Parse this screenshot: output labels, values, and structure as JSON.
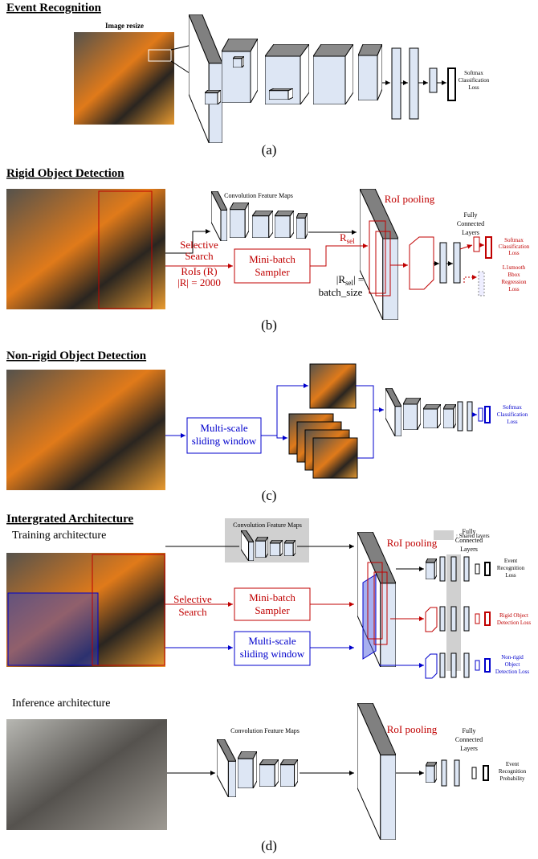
{
  "panel_a": {
    "title": "Event Recognition",
    "image_label": "Image resize",
    "loss": [
      "Softmax",
      "Classification",
      "Loss"
    ],
    "caption": "(a)"
  },
  "panel_b": {
    "title": "Rigid Object Detection",
    "feature_maps": "Convolution Feature Maps",
    "roi_pooling": "RoI pooling",
    "fc_layers": [
      "Fully",
      "Connected",
      "Layers"
    ],
    "cls_loss": [
      "Softmax",
      "Classification",
      "Loss"
    ],
    "reg_loss": [
      "L1smooth",
      "Bbox",
      "Regression",
      "Loss"
    ],
    "proposals": [
      "Selective",
      "Search",
      "RoIs (R)",
      "|R| = 2000"
    ],
    "sampler": [
      "Mini-batch",
      "Sampler"
    ],
    "r_sel": {
      "base": "R",
      "sub": "sel"
    },
    "r_sel_size": {
      "prefix": "|R",
      "sub": "sel",
      "suffix": "| =",
      "value": "batch_size"
    },
    "caption": "(b)"
  },
  "panel_c": {
    "title": "Non-rigid Object Detection",
    "window": [
      "Multi-scale",
      "sliding window"
    ],
    "loss": [
      "Softmax",
      "Classification",
      "Loss"
    ],
    "caption": "(c)"
  },
  "panel_d": {
    "title": "Intergrated Architecture",
    "training": {
      "label": "Training architecture",
      "feature_maps": "Convolution Feature Maps",
      "roi_pooling": "RoI pooling",
      "fc_layers": [
        "Fully",
        "Connected",
        "Layers"
      ],
      "legend": ": Shared layers",
      "proposals": [
        "Selective",
        "Search"
      ],
      "sampler": [
        "Mini-batch",
        "Sampler"
      ],
      "window": [
        "Multi-scale",
        "sliding window"
      ],
      "event_loss": [
        "Event",
        "Recognition",
        "Loss"
      ],
      "rigid_loss": [
        "Rigid Object",
        "Detection Loss"
      ],
      "nonrigid_loss": [
        "Non-rigid",
        "Object",
        "Detection Loss"
      ]
    },
    "inference": {
      "label": "Inference architecture",
      "feature_maps": "Convolution Feature Maps",
      "roi_pooling": "RoI pooling",
      "fc_layers": [
        "Fully",
        "Connected",
        "Layers"
      ],
      "output": [
        "Event",
        "Recognition",
        "Probability"
      ]
    },
    "caption": "(d)"
  }
}
